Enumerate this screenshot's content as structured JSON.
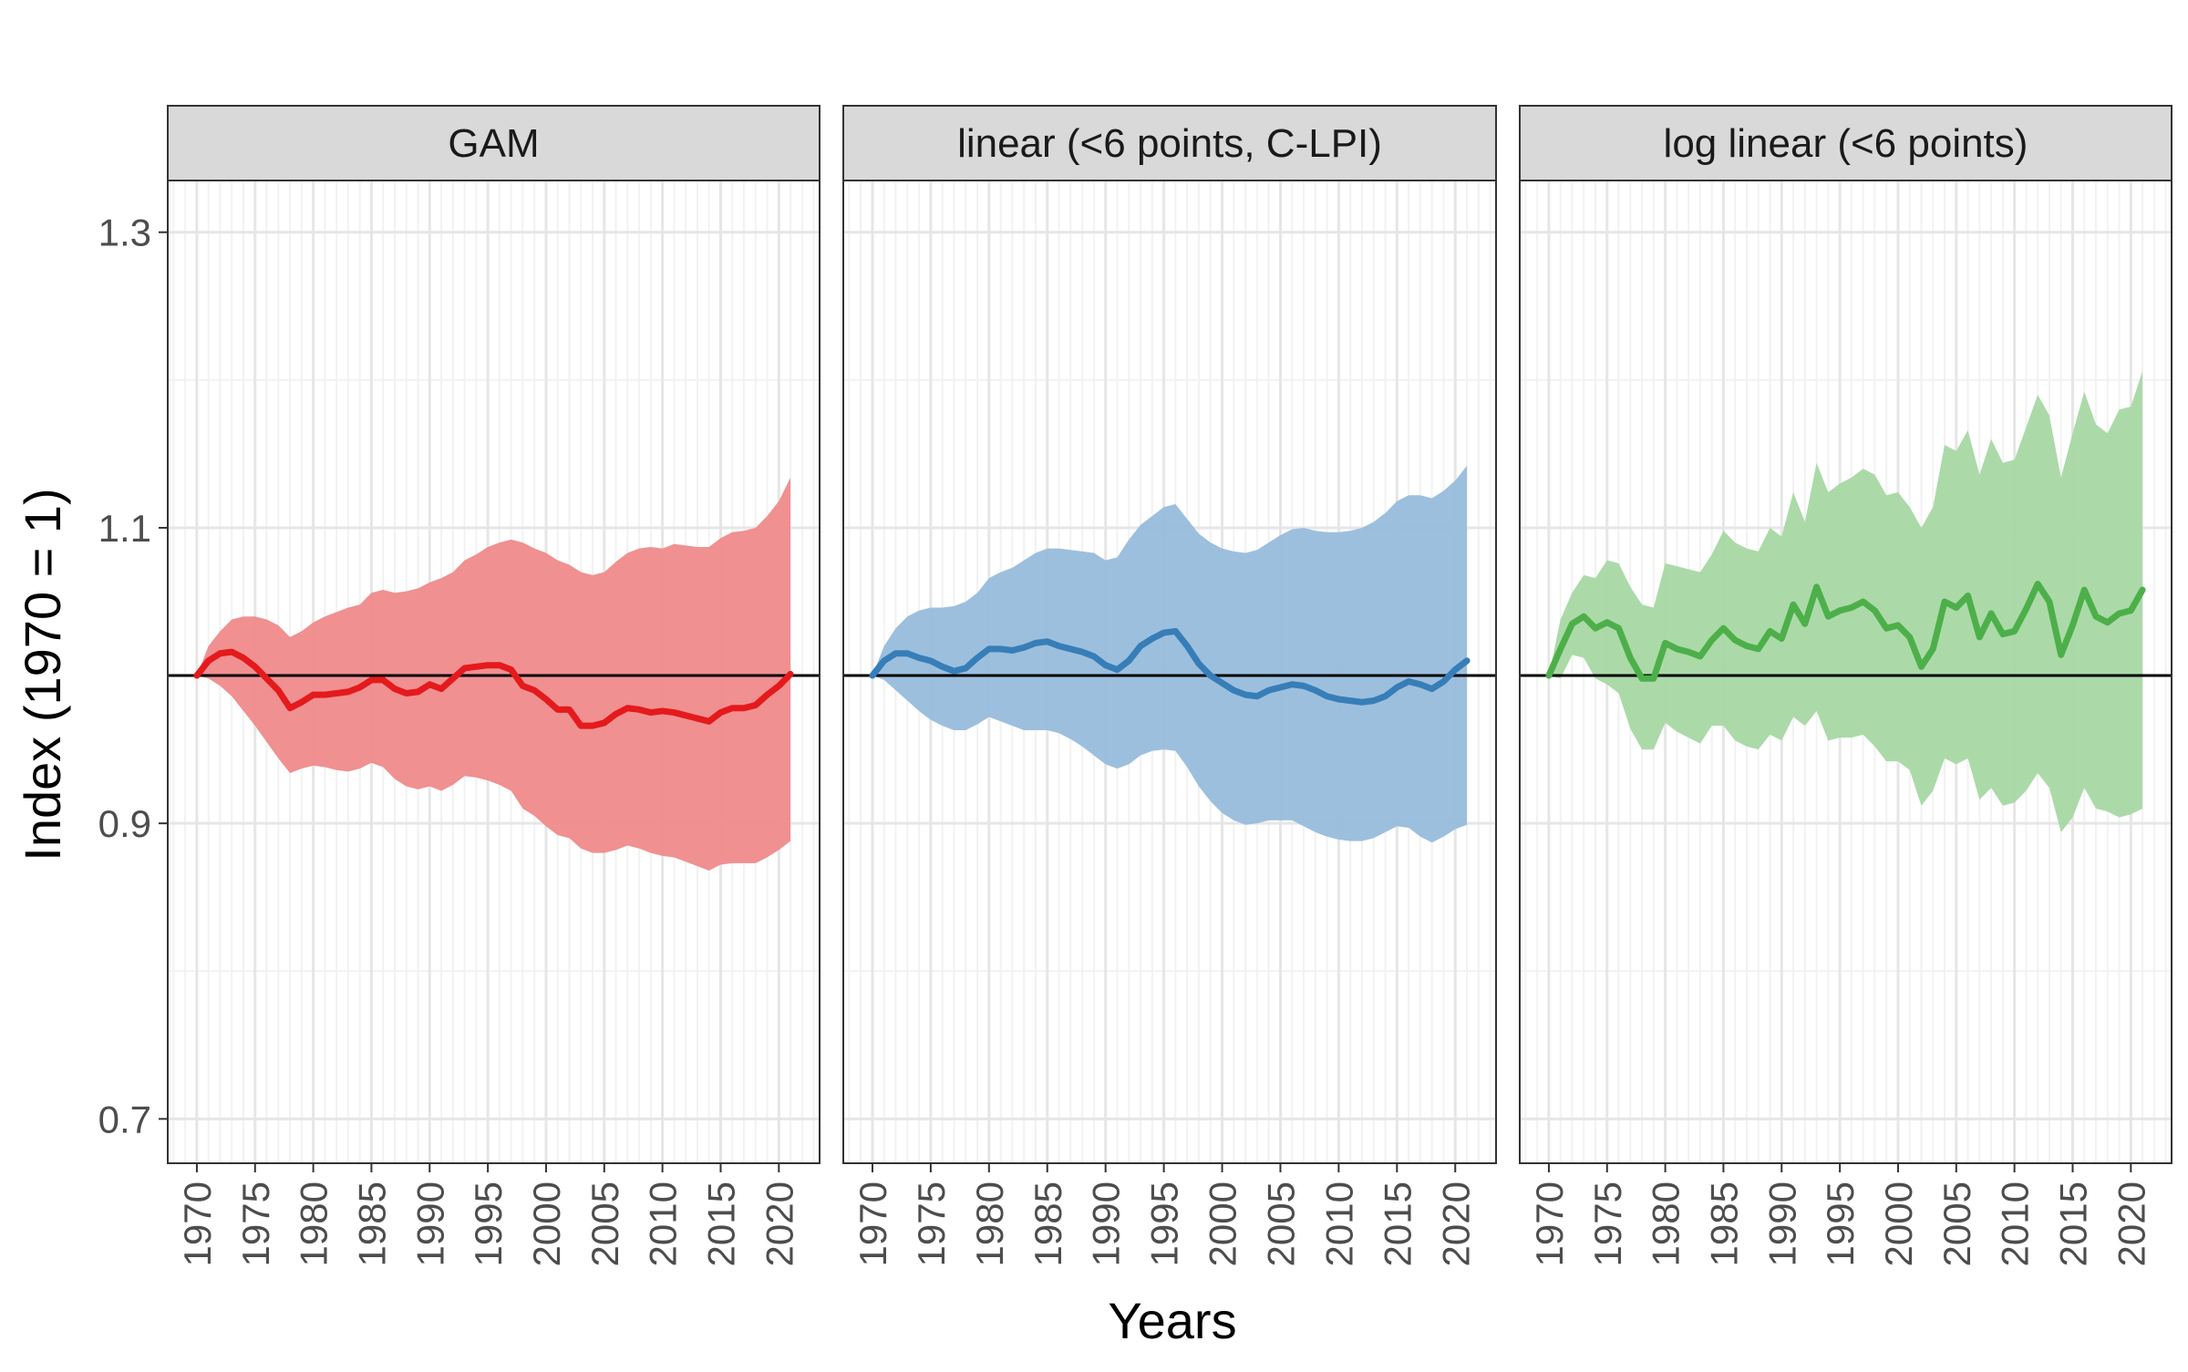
{
  "chart_data": {
    "type": "line",
    "xlabel": "Years",
    "ylabel": "Index (1970 = 1)",
    "ylim": [
      0.67,
      1.335
    ],
    "xlim": [
      1967.5,
      2023.5
    ],
    "y_ticks": [
      0.7,
      0.9,
      1.1,
      1.3
    ],
    "y_tick_labels": [
      "0.7",
      "0.9",
      "1.1",
      "1.3"
    ],
    "x_ticks": [
      1970,
      1975,
      1980,
      1985,
      1990,
      1995,
      2000,
      2005,
      2010,
      2015,
      2020
    ],
    "x_tick_labels": [
      "1970",
      "1975",
      "1980",
      "1985",
      "1990",
      "1995",
      "2000",
      "2005",
      "2010",
      "2015",
      "2020"
    ],
    "reference_line": 1.0,
    "grid": true,
    "facet_labels": [
      "GAM",
      "linear (<6 points, C-LPI)",
      "log linear (<6 points)"
    ],
    "x": [
      1970,
      1971,
      1972,
      1973,
      1974,
      1975,
      1976,
      1977,
      1978,
      1979,
      1980,
      1981,
      1982,
      1983,
      1984,
      1985,
      1986,
      1987,
      1988,
      1989,
      1990,
      1991,
      1992,
      1993,
      1994,
      1995,
      1996,
      1997,
      1998,
      1999,
      2000,
      2001,
      2002,
      2003,
      2004,
      2005,
      2006,
      2007,
      2008,
      2009,
      2010,
      2011,
      2012,
      2013,
      2014,
      2015,
      2016,
      2017,
      2018,
      2019,
      2020,
      2021
    ],
    "series": [
      {
        "facet": "GAM",
        "color": "#e41a1c",
        "fill": "#ef8a8b",
        "values": [
          1.0,
          1.01,
          1.015,
          1.016,
          1.012,
          1.006,
          0.998,
          0.99,
          0.978,
          0.982,
          0.987,
          0.987,
          0.988,
          0.989,
          0.992,
          0.997,
          0.997,
          0.991,
          0.988,
          0.989,
          0.994,
          0.991,
          0.998,
          1.005,
          1.006,
          1.007,
          1.007,
          1.004,
          0.993,
          0.99,
          0.984,
          0.977,
          0.977,
          0.966,
          0.966,
          0.968,
          0.974,
          0.978,
          0.977,
          0.975,
          0.976,
          0.975,
          0.973,
          0.971,
          0.969,
          0.975,
          0.978,
          0.978,
          0.98,
          0.987,
          0.993,
          1.001
        ],
        "upper": [
          1.0,
          1.02,
          1.03,
          1.038,
          1.04,
          1.04,
          1.038,
          1.034,
          1.026,
          1.03,
          1.036,
          1.04,
          1.043,
          1.046,
          1.048,
          1.056,
          1.058,
          1.056,
          1.057,
          1.059,
          1.063,
          1.066,
          1.07,
          1.078,
          1.082,
          1.087,
          1.09,
          1.092,
          1.09,
          1.086,
          1.083,
          1.078,
          1.075,
          1.07,
          1.068,
          1.07,
          1.077,
          1.083,
          1.086,
          1.087,
          1.086,
          1.089,
          1.088,
          1.087,
          1.087,
          1.093,
          1.097,
          1.098,
          1.1,
          1.108,
          1.118,
          1.134
        ],
        "lower": [
          1.0,
          0.998,
          0.993,
          0.986,
          0.976,
          0.966,
          0.955,
          0.944,
          0.934,
          0.937,
          0.939,
          0.938,
          0.936,
          0.935,
          0.937,
          0.941,
          0.938,
          0.93,
          0.925,
          0.923,
          0.925,
          0.922,
          0.926,
          0.932,
          0.931,
          0.929,
          0.926,
          0.922,
          0.91,
          0.905,
          0.898,
          0.892,
          0.89,
          0.883,
          0.88,
          0.88,
          0.882,
          0.885,
          0.883,
          0.88,
          0.878,
          0.877,
          0.874,
          0.871,
          0.868,
          0.872,
          0.873,
          0.873,
          0.873,
          0.877,
          0.882,
          0.888
        ]
      },
      {
        "facet": "linear (<6 points, C-LPI)",
        "color": "#377eb8",
        "fill": "#98bcdc",
        "values": [
          1.0,
          1.01,
          1.015,
          1.015,
          1.012,
          1.01,
          1.006,
          1.003,
          1.005,
          1.012,
          1.018,
          1.018,
          1.017,
          1.019,
          1.022,
          1.023,
          1.02,
          1.018,
          1.016,
          1.013,
          1.007,
          1.004,
          1.01,
          1.02,
          1.025,
          1.029,
          1.03,
          1.02,
          1.008,
          1.0,
          0.995,
          0.99,
          0.987,
          0.986,
          0.99,
          0.992,
          0.994,
          0.993,
          0.99,
          0.986,
          0.984,
          0.983,
          0.982,
          0.983,
          0.986,
          0.992,
          0.996,
          0.994,
          0.991,
          0.996,
          1.004,
          1.01
        ],
        "upper": [
          1.0,
          1.02,
          1.032,
          1.04,
          1.044,
          1.046,
          1.046,
          1.047,
          1.05,
          1.056,
          1.066,
          1.07,
          1.073,
          1.078,
          1.083,
          1.086,
          1.086,
          1.085,
          1.084,
          1.083,
          1.078,
          1.08,
          1.092,
          1.102,
          1.108,
          1.114,
          1.116,
          1.106,
          1.096,
          1.09,
          1.086,
          1.084,
          1.083,
          1.085,
          1.09,
          1.095,
          1.099,
          1.1,
          1.098,
          1.097,
          1.097,
          1.098,
          1.1,
          1.104,
          1.11,
          1.118,
          1.122,
          1.122,
          1.12,
          1.125,
          1.132,
          1.142
        ],
        "lower": [
          1.0,
          0.997,
          0.99,
          0.983,
          0.976,
          0.97,
          0.966,
          0.963,
          0.963,
          0.967,
          0.972,
          0.969,
          0.966,
          0.963,
          0.963,
          0.963,
          0.961,
          0.957,
          0.952,
          0.946,
          0.94,
          0.937,
          0.94,
          0.946,
          0.949,
          0.95,
          0.949,
          0.938,
          0.925,
          0.915,
          0.907,
          0.902,
          0.899,
          0.9,
          0.902,
          0.902,
          0.902,
          0.898,
          0.894,
          0.891,
          0.889,
          0.888,
          0.888,
          0.89,
          0.894,
          0.898,
          0.897,
          0.891,
          0.887,
          0.891,
          0.896,
          0.899
        ]
      },
      {
        "facet": "log linear (<6 points)",
        "color": "#4daf4a",
        "fill": "#a7d8a3",
        "values": [
          1.0,
          1.018,
          1.035,
          1.04,
          1.032,
          1.036,
          1.032,
          1.012,
          0.998,
          0.998,
          1.022,
          1.018,
          1.016,
          1.013,
          1.024,
          1.032,
          1.024,
          1.02,
          1.018,
          1.03,
          1.025,
          1.048,
          1.035,
          1.06,
          1.04,
          1.044,
          1.046,
          1.05,
          1.044,
          1.032,
          1.034,
          1.026,
          1.006,
          1.018,
          1.05,
          1.046,
          1.054,
          1.026,
          1.042,
          1.028,
          1.03,
          1.045,
          1.062,
          1.05,
          1.014,
          1.034,
          1.058,
          1.04,
          1.036,
          1.042,
          1.044,
          1.058
        ],
        "upper": [
          1.0,
          1.038,
          1.056,
          1.068,
          1.066,
          1.078,
          1.076,
          1.06,
          1.048,
          1.046,
          1.076,
          1.074,
          1.072,
          1.07,
          1.082,
          1.098,
          1.09,
          1.086,
          1.084,
          1.1,
          1.094,
          1.124,
          1.104,
          1.144,
          1.124,
          1.13,
          1.134,
          1.14,
          1.136,
          1.122,
          1.124,
          1.114,
          1.1,
          1.114,
          1.156,
          1.152,
          1.166,
          1.136,
          1.16,
          1.144,
          1.146,
          1.168,
          1.19,
          1.176,
          1.134,
          1.164,
          1.192,
          1.17,
          1.164,
          1.18,
          1.182,
          1.206
        ],
        "lower": [
          1.0,
          0.998,
          1.014,
          1.012,
          0.998,
          0.994,
          0.988,
          0.964,
          0.95,
          0.95,
          0.968,
          0.962,
          0.958,
          0.954,
          0.966,
          0.966,
          0.956,
          0.952,
          0.95,
          0.96,
          0.956,
          0.972,
          0.966,
          0.976,
          0.956,
          0.958,
          0.958,
          0.96,
          0.952,
          0.942,
          0.942,
          0.936,
          0.912,
          0.922,
          0.944,
          0.94,
          0.944,
          0.916,
          0.924,
          0.912,
          0.914,
          0.922,
          0.934,
          0.924,
          0.894,
          0.904,
          0.924,
          0.91,
          0.908,
          0.904,
          0.906,
          0.91
        ]
      }
    ]
  }
}
